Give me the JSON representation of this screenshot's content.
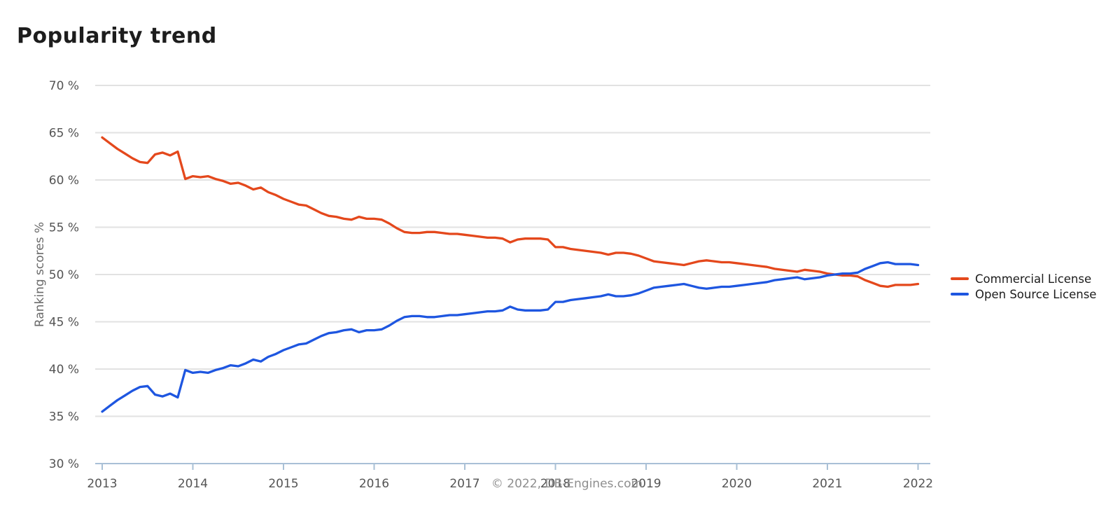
{
  "page": {
    "title": "Popularity trend",
    "footer": "© 2022, DB-Engines.com"
  },
  "colors": {
    "commercial": "#e4481c",
    "open_source": "#1e56e0",
    "grid": "#e2e2e2",
    "axis": "#a9c0d6",
    "tick_label": "#545454",
    "axis_title": "#6b6b6b",
    "footer_text": "#8e8e8e",
    "title_text": "#1d1d1d"
  },
  "chart_data": {
    "type": "line",
    "title": "Popularity trend",
    "xlabel": "",
    "ylabel": "Ranking scores %",
    "ylim": [
      30,
      70
    ],
    "y_tick_step": 5,
    "y_tick_labels": [
      "70 %",
      "65 %",
      "60 %",
      "55 %",
      "50 %",
      "45 %",
      "40 %",
      "35 %",
      "30 %"
    ],
    "x_tick_labels": [
      "2013",
      "2014",
      "2015",
      "2016",
      "2017",
      "2018",
      "2019",
      "2020",
      "2021",
      "2022"
    ],
    "grid": "horizontal",
    "legend_position": "right",
    "footer": "© 2022, DB-Engines.com",
    "x": [
      "2013-01",
      "2013-02",
      "2013-03",
      "2013-04",
      "2013-05",
      "2013-06",
      "2013-07",
      "2013-08",
      "2013-09",
      "2013-10",
      "2013-11",
      "2013-12",
      "2014-01",
      "2014-02",
      "2014-03",
      "2014-04",
      "2014-05",
      "2014-06",
      "2014-07",
      "2014-08",
      "2014-09",
      "2014-10",
      "2014-11",
      "2014-12",
      "2015-01",
      "2015-02",
      "2015-03",
      "2015-04",
      "2015-05",
      "2015-06",
      "2015-07",
      "2015-08",
      "2015-09",
      "2015-10",
      "2015-11",
      "2015-12",
      "2016-01",
      "2016-02",
      "2016-03",
      "2016-04",
      "2016-05",
      "2016-06",
      "2016-07",
      "2016-08",
      "2016-09",
      "2016-10",
      "2016-11",
      "2016-12",
      "2017-01",
      "2017-02",
      "2017-03",
      "2017-04",
      "2017-05",
      "2017-06",
      "2017-07",
      "2017-08",
      "2017-09",
      "2017-10",
      "2017-11",
      "2017-12",
      "2018-01",
      "2018-02",
      "2018-03",
      "2018-04",
      "2018-05",
      "2018-06",
      "2018-07",
      "2018-08",
      "2018-09",
      "2018-10",
      "2018-11",
      "2018-12",
      "2019-01",
      "2019-02",
      "2019-03",
      "2019-04",
      "2019-05",
      "2019-06",
      "2019-07",
      "2019-08",
      "2019-09",
      "2019-10",
      "2019-11",
      "2019-12",
      "2020-01",
      "2020-02",
      "2020-03",
      "2020-04",
      "2020-05",
      "2020-06",
      "2020-07",
      "2020-08",
      "2020-09",
      "2020-10",
      "2020-11",
      "2020-12",
      "2021-01",
      "2021-02",
      "2021-03",
      "2021-04",
      "2021-05",
      "2021-06",
      "2021-07",
      "2021-08",
      "2021-09",
      "2021-10",
      "2021-11",
      "2021-12",
      "2022-01"
    ],
    "series": [
      {
        "name": "Commercial License",
        "color": "#e4481c",
        "values": [
          64.5,
          63.9,
          63.3,
          62.8,
          62.3,
          61.9,
          61.8,
          62.7,
          62.9,
          62.6,
          63.0,
          60.1,
          60.4,
          60.3,
          60.4,
          60.1,
          59.9,
          59.6,
          59.7,
          59.4,
          59.0,
          59.2,
          58.7,
          58.4,
          58.0,
          57.7,
          57.4,
          57.3,
          56.9,
          56.5,
          56.2,
          56.1,
          55.9,
          55.8,
          56.1,
          55.9,
          55.9,
          55.8,
          55.4,
          54.9,
          54.5,
          54.4,
          54.4,
          54.5,
          54.5,
          54.4,
          54.3,
          54.3,
          54.2,
          54.1,
          54.0,
          53.9,
          53.9,
          53.8,
          53.4,
          53.7,
          53.8,
          53.8,
          53.8,
          53.7,
          52.9,
          52.9,
          52.7,
          52.6,
          52.5,
          52.4,
          52.3,
          52.1,
          52.3,
          52.3,
          52.2,
          52.0,
          51.7,
          51.4,
          51.3,
          51.2,
          51.1,
          51.0,
          51.2,
          51.4,
          51.5,
          51.4,
          51.3,
          51.3,
          51.2,
          51.1,
          51.0,
          50.9,
          50.8,
          50.6,
          50.5,
          50.4,
          50.3,
          50.5,
          50.4,
          50.3,
          50.1,
          50.0,
          49.9,
          49.9,
          49.8,
          49.4,
          49.1,
          48.8,
          48.7,
          48.9,
          48.9,
          48.9,
          49.0
        ]
      },
      {
        "name": "Open Source License",
        "color": "#1e56e0",
        "values": [
          35.5,
          36.1,
          36.7,
          37.2,
          37.7,
          38.1,
          38.2,
          37.3,
          37.1,
          37.4,
          37.0,
          39.9,
          39.6,
          39.7,
          39.6,
          39.9,
          40.1,
          40.4,
          40.3,
          40.6,
          41.0,
          40.8,
          41.3,
          41.6,
          42.0,
          42.3,
          42.6,
          42.7,
          43.1,
          43.5,
          43.8,
          43.9,
          44.1,
          44.2,
          43.9,
          44.1,
          44.1,
          44.2,
          44.6,
          45.1,
          45.5,
          45.6,
          45.6,
          45.5,
          45.5,
          45.6,
          45.7,
          45.7,
          45.8,
          45.9,
          46.0,
          46.1,
          46.1,
          46.2,
          46.6,
          46.3,
          46.2,
          46.2,
          46.2,
          46.3,
          47.1,
          47.1,
          47.3,
          47.4,
          47.5,
          47.6,
          47.7,
          47.9,
          47.7,
          47.7,
          47.8,
          48.0,
          48.3,
          48.6,
          48.7,
          48.8,
          48.9,
          49.0,
          48.8,
          48.6,
          48.5,
          48.6,
          48.7,
          48.7,
          48.8,
          48.9,
          49.0,
          49.1,
          49.2,
          49.4,
          49.5,
          49.6,
          49.7,
          49.5,
          49.6,
          49.7,
          49.9,
          50.0,
          50.1,
          50.1,
          50.2,
          50.6,
          50.9,
          51.2,
          51.3,
          51.1,
          51.1,
          51.1,
          51.0
        ]
      }
    ]
  }
}
